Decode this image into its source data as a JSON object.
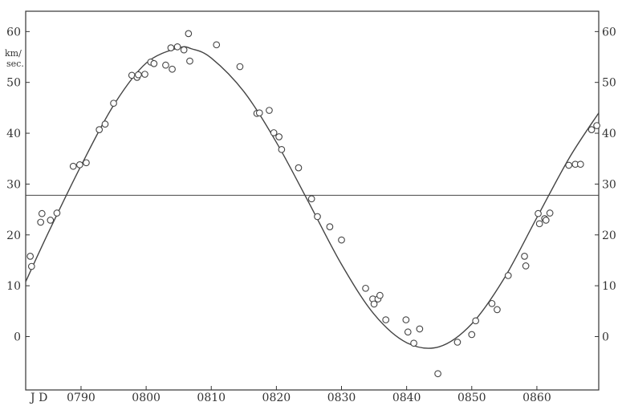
{
  "chart_data": {
    "type": "scatter",
    "x_label_prefix": "J D",
    "y_unit_line1": "km/",
    "y_unit_line2": "sec.",
    "xlim": [
      781.5,
      869.5
    ],
    "ylim": [
      -10.5,
      64
    ],
    "x_ticks": [
      790,
      800,
      810,
      820,
      830,
      840,
      850,
      860
    ],
    "x_tick_labels": [
      "0790",
      "0800",
      "0810",
      "0820",
      "0830",
      "0840",
      "0850",
      "0860"
    ],
    "y_ticks_left": [
      0,
      10,
      20,
      30,
      40,
      50,
      60
    ],
    "y_tick_labels_left": [
      "0",
      "10",
      "20",
      "30",
      "40",
      "50",
      "60"
    ],
    "y_ticks_right": [
      0,
      10,
      20,
      30,
      40,
      50,
      60
    ],
    "y_tick_labels_right": [
      "0",
      "10",
      "20",
      "30",
      "40",
      "50",
      "60"
    ],
    "gamma_velocity": 27.8,
    "curve": {
      "x": [
        781.5,
        785,
        790,
        795,
        800,
        805,
        807,
        810,
        815,
        820,
        825,
        830,
        835,
        840,
        845,
        850,
        855,
        860,
        865,
        869.5
      ],
      "y": [
        10.8,
        20.5,
        33.6,
        45.5,
        53.8,
        56.8,
        56.6,
        54.8,
        48.2,
        38.2,
        26.3,
        14.2,
        4.4,
        -1.2,
        -2.0,
        2.5,
        11.5,
        23.4,
        35.2,
        44.0
      ]
    },
    "points": {
      "x": [
        782.2,
        782.4,
        783.8,
        784.0,
        785.3,
        786.3,
        788.8,
        789.8,
        790.8,
        792.8,
        793.7,
        795.0,
        797.8,
        798.6,
        798.8,
        799.8,
        800.7,
        801.2,
        803.0,
        803.8,
        804.0,
        804.8,
        805.8,
        806.5,
        806.7,
        810.8,
        814.4,
        817.0,
        817.4,
        818.9,
        819.6,
        820.4,
        820.8,
        823.4,
        825.4,
        826.3,
        828.2,
        830.0,
        833.7,
        834.8,
        835.0,
        835.6,
        835.9,
        836.8,
        839.9,
        840.2,
        841.1,
        842.0,
        844.8,
        847.8,
        850.0,
        850.6,
        853.1,
        853.9,
        855.6,
        858.1,
        858.3,
        860.2,
        860.4,
        861.2,
        861.4,
        862.0,
        864.9,
        865.9,
        866.7,
        868.4,
        869.2
      ],
      "y": [
        15.8,
        13.8,
        22.5,
        24.2,
        22.9,
        24.3,
        33.5,
        33.8,
        34.2,
        40.7,
        41.8,
        45.9,
        51.4,
        51.0,
        51.5,
        51.6,
        54.0,
        53.7,
        53.4,
        56.8,
        52.6,
        57.0,
        56.4,
        59.6,
        54.2,
        57.4,
        53.1,
        43.9,
        44.0,
        44.5,
        40.1,
        39.3,
        36.8,
        33.2,
        27.1,
        23.6,
        21.6,
        19.0,
        9.5,
        7.4,
        6.4,
        7.4,
        8.1,
        3.3,
        3.3,
        0.9,
        -1.3,
        1.5,
        -7.3,
        -1.1,
        0.4,
        3.1,
        6.5,
        5.3,
        12.0,
        15.8,
        13.9,
        24.2,
        22.2,
        23.2,
        22.9,
        24.3,
        33.7,
        33.9,
        33.9,
        40.7,
        41.5
      ]
    }
  }
}
